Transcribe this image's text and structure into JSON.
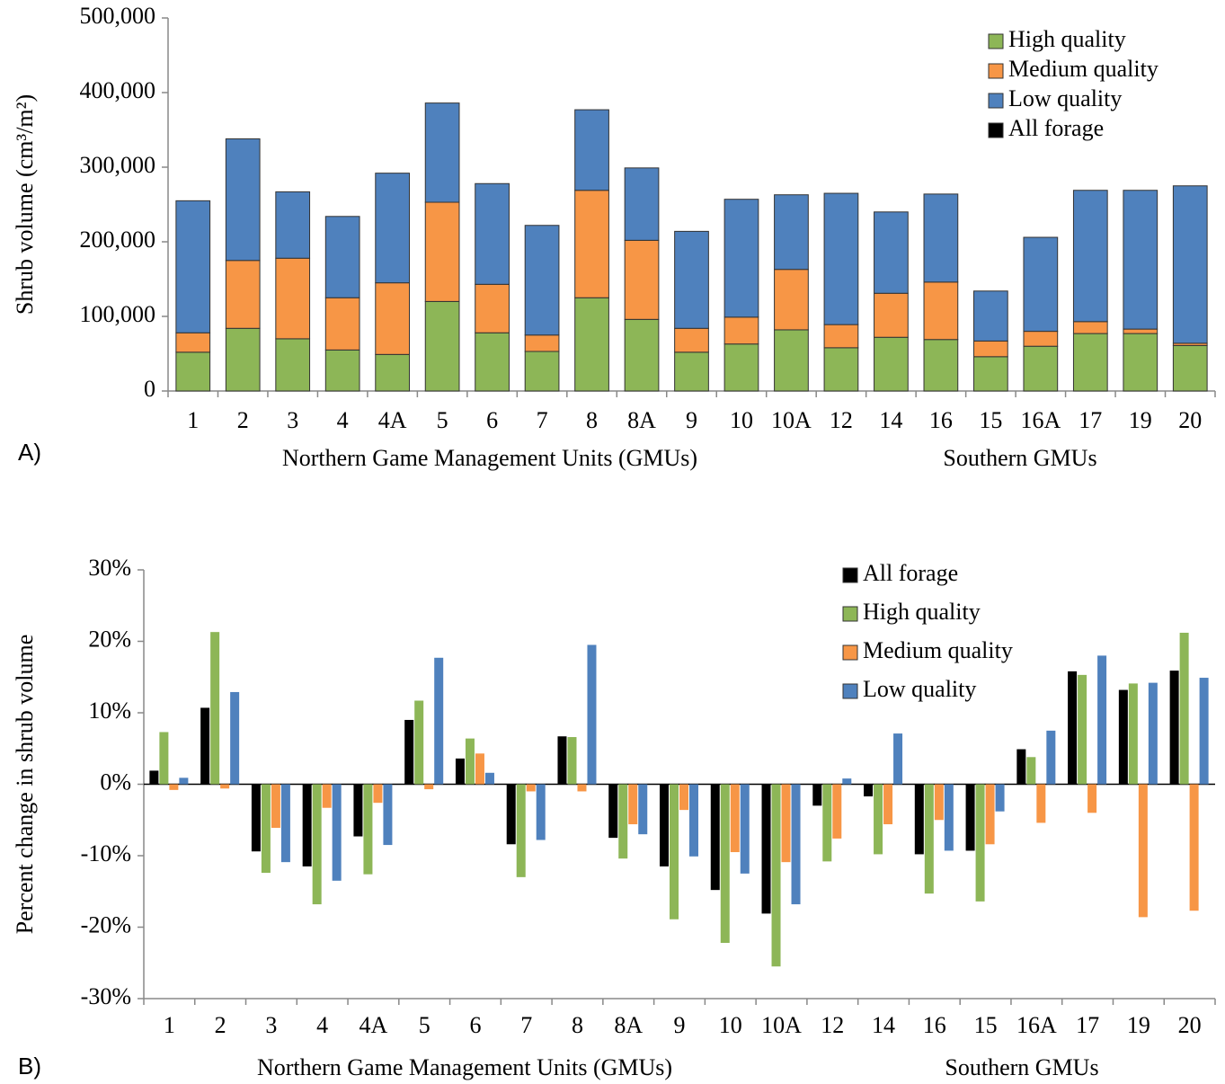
{
  "chart_data": [
    {
      "type": "stacked_bar",
      "panel_label": "A)",
      "y_label": "Shrub volume (cm³/m²)",
      "categories": [
        "1",
        "2",
        "3",
        "4",
        "4A",
        "5",
        "6",
        "7",
        "8",
        "8A",
        "9",
        "10",
        "10A",
        "12",
        "14",
        "16",
        "15",
        "16A",
        "17",
        "19",
        "20"
      ],
      "group_labels": [
        "Northern Game Management Units (GMUs)",
        "Southern GMUs"
      ],
      "series": [
        {
          "name": "High quality",
          "color": "#8db657",
          "values": [
            52000,
            84000,
            70000,
            55000,
            49000,
            120000,
            78000,
            53000,
            125000,
            96000,
            52000,
            63000,
            82000,
            58000,
            72000,
            69000,
            46000,
            60000,
            77000,
            77000,
            61000
          ]
        },
        {
          "name": "Medium quality",
          "color": "#f79646",
          "values": [
            26000,
            91000,
            108000,
            70000,
            96000,
            133000,
            65000,
            22000,
            144000,
            106000,
            32000,
            36000,
            81000,
            31000,
            59000,
            77000,
            21000,
            20000,
            16000,
            6000,
            3000
          ]
        },
        {
          "name": "Low quality",
          "color": "#4f81bd",
          "values": [
            177000,
            163000,
            89000,
            109000,
            147000,
            133000,
            135000,
            147000,
            108000,
            97000,
            130000,
            158000,
            100000,
            176000,
            109000,
            118000,
            67000,
            126000,
            176000,
            186000,
            211000
          ]
        },
        {
          "name": "All forage",
          "color": "#000000",
          "values": [
            0,
            0,
            0,
            0,
            0,
            0,
            0,
            0,
            0,
            0,
            0,
            0,
            0,
            0,
            0,
            0,
            0,
            0,
            0,
            0,
            0
          ]
        }
      ],
      "ylim": [
        0,
        500000
      ],
      "yticks": [
        0,
        {
          "value": 100000,
          "label": "100,000"
        },
        {
          "value": 200000,
          "label": "200,000"
        },
        {
          "value": 300000,
          "label": "300,000"
        },
        {
          "value": 400000,
          "label": "400,000"
        },
        {
          "value": 500000,
          "label": "500,000"
        }
      ],
      "legend": "upper right"
    },
    {
      "type": "grouped_bar",
      "panel_label": "B)",
      "y_label": "Percent change in shrub volume",
      "categories": [
        "1",
        "2",
        "3",
        "4",
        "4A",
        "5",
        "6",
        "7",
        "8",
        "8A",
        "9",
        "10",
        "10A",
        "12",
        "14",
        "16",
        "15",
        "16A",
        "17",
        "19",
        "20"
      ],
      "group_labels": [
        "Northern Game Management Units (GMUs)",
        "Southern GMUs"
      ],
      "series": [
        {
          "name": "All forage",
          "color": "#000000",
          "values": [
            1.9,
            10.7,
            -9.4,
            -11.5,
            -7.3,
            9.0,
            3.6,
            -8.4,
            6.7,
            -7.5,
            -11.5,
            -14.8,
            -18.1,
            -3.0,
            -1.7,
            -9.8,
            -9.3,
            4.9,
            15.8,
            13.2,
            15.9
          ]
        },
        {
          "name": "High quality",
          "color": "#8db657",
          "values": [
            7.3,
            21.3,
            -12.4,
            -16.8,
            -12.6,
            11.7,
            6.4,
            -13.0,
            6.6,
            -10.4,
            -18.9,
            -22.2,
            -25.5,
            -10.8,
            -9.8,
            -15.3,
            -16.4,
            3.8,
            15.3,
            14.1,
            21.2
          ]
        },
        {
          "name": "Medium quality",
          "color": "#f79646",
          "values": [
            -0.8,
            -0.6,
            -6.1,
            -3.3,
            -2.6,
            -0.7,
            4.3,
            -1.0,
            -1.0,
            -5.6,
            -3.6,
            -9.5,
            -10.9,
            -7.6,
            -5.6,
            -5.0,
            -8.4,
            -5.4,
            -4.0,
            -18.6,
            -17.7
          ]
        },
        {
          "name": "Low quality",
          "color": "#4f81bd",
          "values": [
            0.9,
            12.9,
            -10.9,
            -13.5,
            -8.5,
            17.7,
            1.6,
            -7.8,
            19.5,
            -7.0,
            -10.1,
            -12.5,
            -16.8,
            0.8,
            7.1,
            -9.3,
            -3.8,
            7.5,
            18.0,
            14.2,
            14.9
          ]
        }
      ],
      "ylim": [
        -30,
        30
      ],
      "yticks": [
        {
          "value": -30,
          "label": "-30%"
        },
        {
          "value": -20,
          "label": "-20%"
        },
        {
          "value": -10,
          "label": "-10%"
        },
        {
          "value": 0,
          "label": "0%"
        },
        {
          "value": 10,
          "label": "10%"
        },
        {
          "value": 20,
          "label": "20%"
        },
        {
          "value": 30,
          "label": "30%"
        }
      ],
      "legend": "upper right"
    }
  ]
}
